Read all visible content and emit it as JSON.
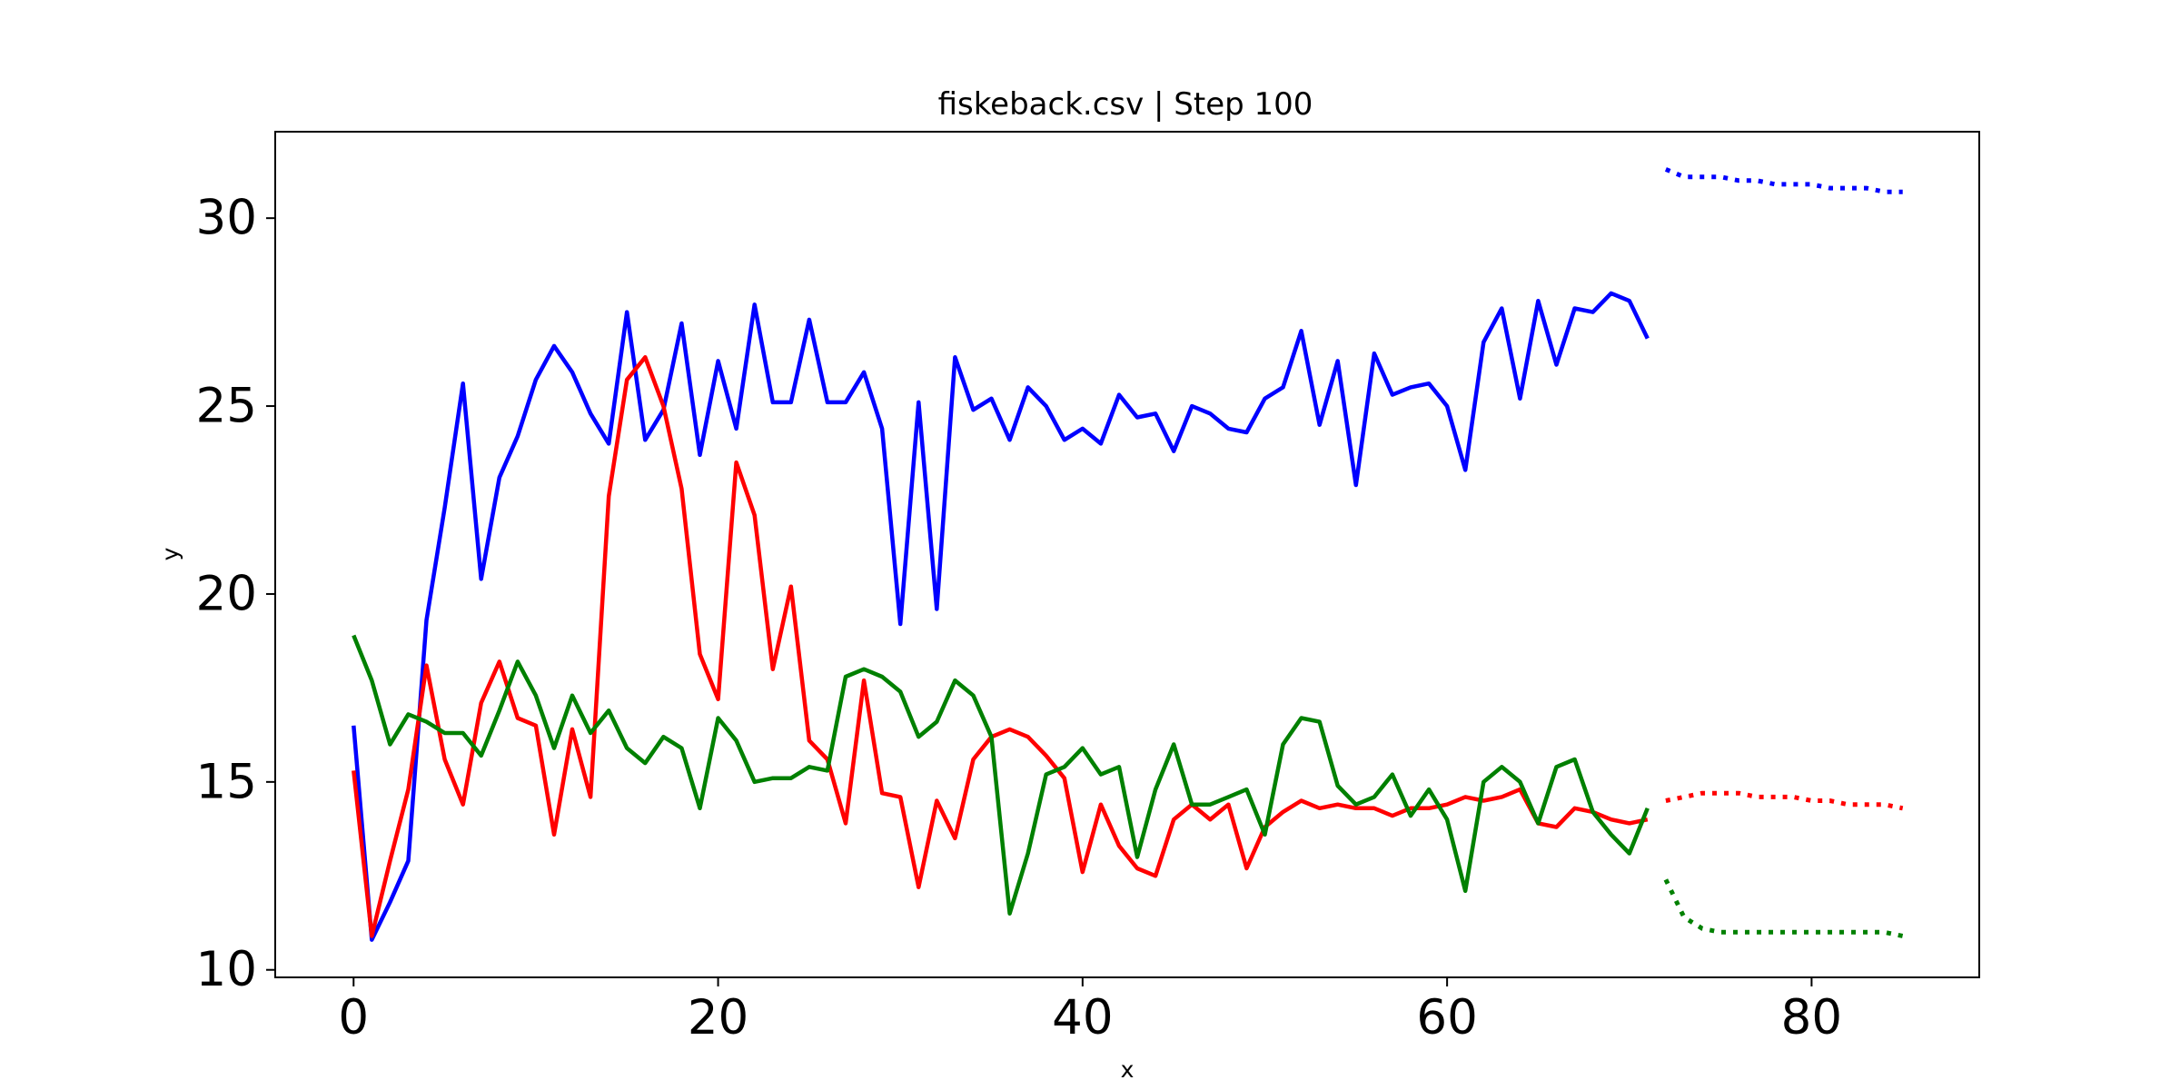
{
  "chart_data": {
    "type": "line",
    "title": "fiskeback.csv | Step 100",
    "xlabel": "x",
    "ylabel": "y",
    "xlim": [
      -4.3,
      89.2
    ],
    "ylim": [
      9.8,
      32.3
    ],
    "xticks": [
      0,
      20,
      40,
      60,
      80
    ],
    "yticks": [
      10,
      15,
      20,
      25,
      30
    ],
    "grid": false,
    "legend": "none",
    "series": [
      {
        "color": "#0000ff",
        "style": "solid",
        "x_start": 0,
        "values": [
          16.5,
          10.8,
          11.8,
          12.9,
          19.3,
          22.3,
          25.6,
          20.4,
          23.1,
          24.2,
          25.7,
          26.6,
          25.9,
          24.8,
          24.0,
          27.5,
          24.1,
          24.9,
          27.2,
          23.7,
          26.2,
          24.4,
          27.7,
          25.1,
          25.1,
          27.3,
          25.1,
          25.1,
          25.9,
          24.4,
          19.2,
          25.1,
          19.6,
          26.3,
          24.9,
          25.2,
          24.1,
          25.5,
          25.0,
          24.1,
          24.4,
          24.0,
          25.3,
          24.7,
          24.8,
          23.8,
          25.0,
          24.8,
          24.4,
          24.3,
          25.2,
          25.5,
          27.0,
          24.5,
          26.2,
          22.9,
          26.4,
          25.3,
          25.5,
          25.6,
          25.0,
          23.3,
          26.7,
          27.6,
          25.2,
          27.8,
          26.1,
          27.6,
          27.5,
          28.0,
          27.8,
          26.8
        ]
      },
      {
        "color": "#ff0000",
        "style": "solid",
        "x_start": 0,
        "values": [
          15.3,
          10.9,
          12.9,
          14.8,
          18.1,
          15.6,
          14.4,
          17.1,
          18.2,
          16.7,
          16.5,
          13.6,
          16.4,
          14.6,
          22.6,
          25.7,
          26.3,
          25.0,
          22.8,
          18.4,
          17.2,
          23.5,
          22.1,
          18.0,
          20.2,
          16.1,
          15.6,
          13.9,
          17.7,
          14.7,
          14.6,
          12.2,
          14.5,
          13.5,
          15.6,
          16.2,
          16.4,
          16.2,
          15.7,
          15.1,
          12.6,
          14.4,
          13.3,
          12.7,
          12.5,
          14.0,
          14.4,
          14.0,
          14.4,
          12.7,
          13.8,
          14.2,
          14.5,
          14.3,
          14.4,
          14.3,
          14.3,
          14.1,
          14.3,
          14.3,
          14.4,
          14.6,
          14.5,
          14.6,
          14.8,
          13.9,
          13.8,
          14.3,
          14.2,
          14.0,
          13.9,
          14.0
        ]
      },
      {
        "color": "#008000",
        "style": "solid",
        "x_start": 0,
        "values": [
          18.9,
          17.7,
          16.0,
          16.8,
          16.6,
          16.3,
          16.3,
          15.7,
          16.9,
          18.2,
          17.3,
          15.9,
          17.3,
          16.3,
          16.9,
          15.9,
          15.5,
          16.2,
          15.9,
          14.3,
          16.7,
          16.1,
          15.0,
          15.1,
          15.1,
          15.4,
          15.3,
          17.8,
          18.0,
          17.8,
          17.4,
          16.2,
          16.6,
          17.7,
          17.3,
          16.2,
          11.5,
          13.1,
          15.2,
          15.4,
          15.9,
          15.2,
          15.4,
          13.0,
          14.8,
          16.0,
          14.4,
          14.4,
          14.6,
          14.8,
          13.6,
          16.0,
          16.7,
          16.6,
          14.9,
          14.4,
          14.6,
          15.2,
          14.1,
          14.8,
          14.0,
          12.1,
          15.0,
          15.4,
          15.0,
          13.9,
          15.4,
          15.6,
          14.2,
          13.6,
          13.1,
          14.3
        ]
      },
      {
        "color": "#0000ff",
        "style": "dotted",
        "x_start": 72,
        "values": [
          31.3,
          31.1,
          31.1,
          31.1,
          31.0,
          31.0,
          30.9,
          30.9,
          30.9,
          30.8,
          30.8,
          30.8,
          30.7,
          30.7
        ]
      },
      {
        "color": "#ff0000",
        "style": "dotted",
        "x_start": 72,
        "values": [
          14.5,
          14.6,
          14.7,
          14.7,
          14.7,
          14.6,
          14.6,
          14.6,
          14.5,
          14.5,
          14.4,
          14.4,
          14.4,
          14.3
        ]
      },
      {
        "color": "#008000",
        "style": "dotted",
        "x_start": 72,
        "values": [
          12.4,
          11.4,
          11.1,
          11.0,
          11.0,
          11.0,
          11.0,
          11.0,
          11.0,
          11.0,
          11.0,
          11.0,
          11.0,
          10.9
        ]
      }
    ]
  }
}
